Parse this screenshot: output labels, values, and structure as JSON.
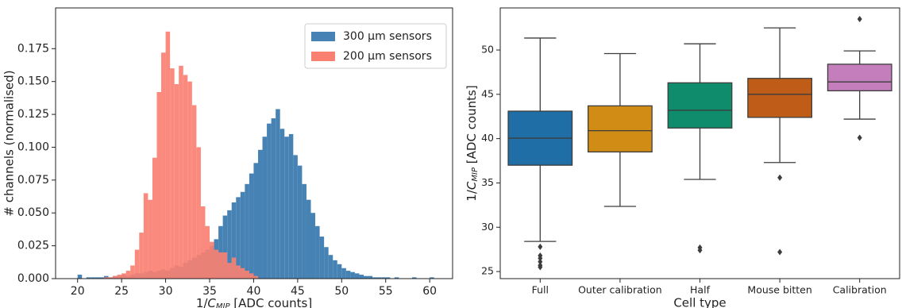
{
  "chart_data": [
    {
      "type": "histogram",
      "xlabel": [
        "1/",
        "C",
        "MIP",
        " [ADC counts]"
      ],
      "ylabel": "# channels (normalised)",
      "xlim": [
        17.5,
        62.6
      ],
      "ylim": [
        0,
        0.206
      ],
      "xticks": [
        20,
        25,
        30,
        35,
        40,
        45,
        50,
        55,
        60
      ],
      "yticks": [
        {
          "value": 0,
          "label": "0.000"
        },
        0.025,
        {
          "value": 0.05,
          "label": "0.050"
        },
        0.075,
        {
          "value": 0.1,
          "label": "0.100"
        },
        0.125,
        {
          "value": 0.15,
          "label": "0.150"
        },
        0.175
      ],
      "legend": "upper right",
      "series": [
        {
          "name": "300 μm sensors",
          "color": "#4682b4",
          "bins": [
            20,
            20.5,
            21,
            21.5,
            22,
            22.5,
            23,
            23.5,
            24,
            24.5,
            25,
            25.5,
            26,
            26.5,
            27,
            27.5,
            28,
            28.5,
            29,
            29.5,
            30,
            30.5,
            31,
            31.5,
            32,
            32.5,
            33,
            33.5,
            34,
            34.5,
            35,
            35.5,
            36,
            36.5,
            37,
            37.5,
            38,
            38.5,
            39,
            39.5,
            40,
            40.5,
            41,
            41.5,
            42,
            42.5,
            43,
            43.5,
            44,
            44.5,
            45,
            45.5,
            46,
            46.5,
            47,
            47.5,
            48,
            48.5,
            49,
            49.5,
            50,
            50.5,
            51,
            51.5,
            52,
            52.5,
            53,
            53.5,
            54,
            54.5,
            55,
            55.5,
            56,
            56.5,
            57,
            57.5,
            58,
            58.5,
            59,
            59.5,
            60,
            60.5
          ],
          "values": [
            0.003,
            0,
            0.001,
            0.001,
            0.001,
            0.001,
            0.002,
            0.001,
            0.002,
            0.002,
            0.003,
            0.002,
            0.003,
            0.004,
            0.004,
            0.005,
            0.006,
            0.005,
            0.006,
            0.007,
            0.006,
            0.008,
            0.01,
            0.009,
            0.012,
            0.014,
            0.016,
            0.018,
            0.02,
            0.022,
            0.025,
            0.03,
            0.04,
            0.048,
            0.052,
            0.058,
            0.062,
            0.066,
            0.072,
            0.08,
            0.088,
            0.098,
            0.108,
            0.118,
            0.122,
            0.129,
            0.114,
            0.108,
            0.11,
            0.094,
            0.086,
            0.072,
            0.06,
            0.05,
            0.04,
            0.032,
            0.024,
            0.018,
            0.014,
            0.011,
            0.008,
            0.006,
            0.005,
            0.004,
            0.003,
            0.002,
            0.002,
            0.001,
            0.001,
            0.001,
            0.001,
            0,
            0.001,
            0,
            0,
            0,
            0.001,
            0,
            0,
            0,
            0.001
          ]
        },
        {
          "name": "200 μm sensors",
          "color": "#fa8072",
          "bins": [
            23,
            23.5,
            24,
            24.5,
            25,
            25.5,
            26,
            26.5,
            27,
            27.5,
            28,
            28.5,
            29,
            29.5,
            30,
            30.5,
            31,
            31.5,
            32,
            32.5,
            33,
            33.5,
            34,
            34.5,
            35,
            35.5,
            36,
            36.5,
            37,
            37.5,
            38,
            38.5,
            39,
            39.5,
            40,
            40.5
          ],
          "values": [
            0.001,
            0.001,
            0.002,
            0.003,
            0.004,
            0.006,
            0.01,
            0.022,
            0.035,
            0.065,
            0.06,
            0.092,
            0.142,
            0.172,
            0.188,
            0.16,
            0.148,
            0.162,
            0.155,
            0.15,
            0.132,
            0.1,
            0.055,
            0.04,
            0.028,
            0.022,
            0.02,
            0.02,
            0.012,
            0.016,
            0.01,
            0.008,
            0.006,
            0.004,
            0.002
          ]
        }
      ]
    },
    {
      "type": "box",
      "xlabel": "Cell type",
      "ylabel": [
        "1/",
        "C",
        "MIP",
        " [ADC counts]"
      ],
      "ylim": [
        24.2,
        54.75
      ],
      "yticks": [
        25,
        30,
        35,
        40,
        45,
        50
      ],
      "categories": [
        "Full",
        "Outer calibration",
        "Half",
        "Mouse bitten",
        "Calibration"
      ],
      "colors": [
        "#1f6fa6",
        "#d08c15",
        "#0f8c6b",
        "#bf5c17",
        "#c37ebb"
      ],
      "boxes": [
        {
          "whislo": 28.4,
          "q1": 37.0,
          "med": 40.05,
          "q3": 43.1,
          "whishi": 51.35,
          "fliers": [
            27.8,
            26.8,
            26.5,
            26.1,
            25.7,
            25.5
          ]
        },
        {
          "whislo": 32.35,
          "q1": 38.5,
          "med": 40.9,
          "q3": 43.7,
          "whishi": 49.6,
          "fliers": []
        },
        {
          "whislo": 35.4,
          "q1": 41.2,
          "med": 43.2,
          "q3": 46.3,
          "whishi": 50.7,
          "fliers": [
            27.7,
            27.4
          ]
        },
        {
          "whislo": 37.3,
          "q1": 42.4,
          "med": 45.0,
          "q3": 46.8,
          "whishi": 52.5,
          "fliers": [
            35.6,
            27.2
          ]
        },
        {
          "whislo": 42.2,
          "q1": 45.4,
          "med": 46.4,
          "q3": 48.4,
          "whishi": 49.9,
          "fliers": [
            53.5,
            40.1
          ]
        }
      ]
    }
  ]
}
